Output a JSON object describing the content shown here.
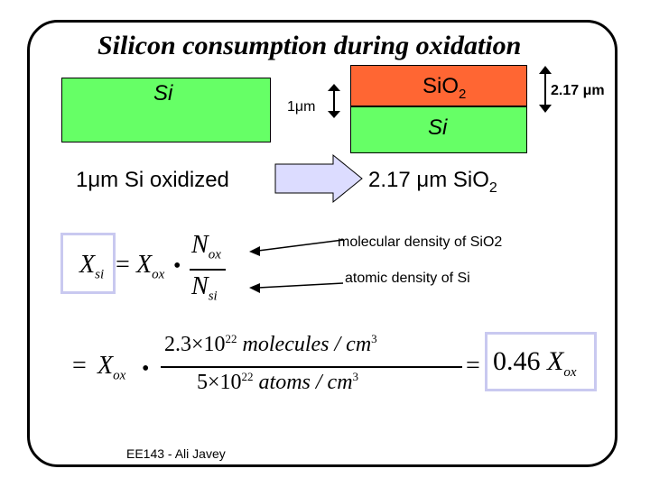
{
  "title": "Silicon consumption during oxidation",
  "left_block_label": "Si",
  "thickness_left": "1μm",
  "sio2_label": "SiO",
  "sio2_sub": "2",
  "si_bottom_label": "Si",
  "thickness_right": "2.17 μm",
  "oxidized_left": "1μm Si oxidized",
  "oxidized_right_main": "2.17 μm SiO",
  "oxidized_right_sub": "2",
  "annot_molecular": "molecular density of SiO2",
  "annot_atomic": "atomic density of Si",
  "eq1": {
    "X": "X",
    "si": "si",
    "equals": "=",
    "Xox": "X",
    "ox": "ox",
    "dot": "•",
    "N_top": "N",
    "N_top_sub": "ox",
    "N_bot": "N",
    "N_bot_sub": "si"
  },
  "eq2": {
    "equals": "=",
    "X": "X",
    "ox": "ox",
    "dot": "•",
    "num_coef": "2.3×10",
    "num_exp": "22",
    "num_unit": "molecules / cm",
    "num_unit_exp": "3",
    "den_coef": "5×10",
    "den_exp": "22",
    "den_unit": "atoms / cm",
    "den_unit_exp": "3",
    "equals2": "=",
    "result_coef": "0.46",
    "result_X": "X",
    "result_sub": "ox"
  },
  "footer": "EE143 - Ali Javey",
  "colors": {
    "green": "#66ff66",
    "oxide": "#ff6633",
    "arrow_fill": "#dcdcff",
    "box_border": "#c9c9f0",
    "arrow_line": "#000000"
  }
}
